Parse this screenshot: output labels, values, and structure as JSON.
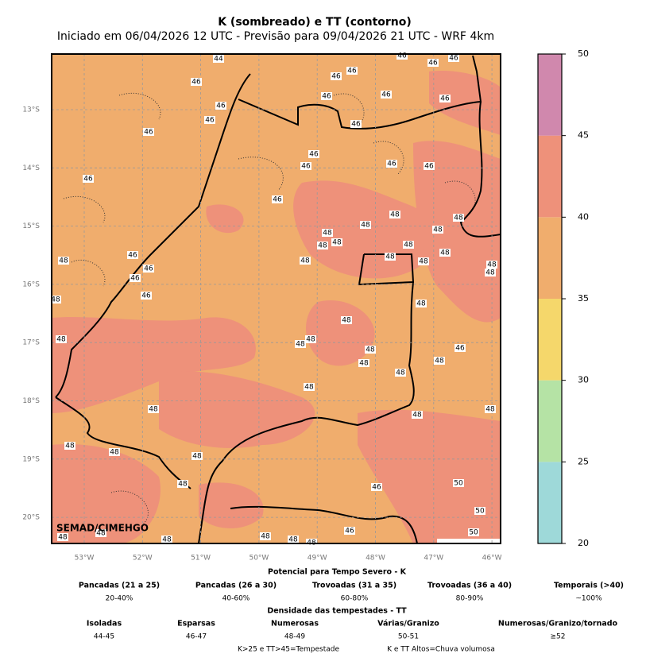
{
  "title": "K (sombreado) e TT (contorno)",
  "subtitle": "Iniciado em 06/04/2026 12 UTC - Previsão para 09/04/2026 21 UTC - WRF 4km",
  "map": {
    "lat_labels": [
      "13°S",
      "14°S",
      "15°S",
      "16°S",
      "17°S",
      "18°S",
      "19°S",
      "20°S"
    ],
    "lon_labels": [
      "53°W",
      "52°W",
      "51°W",
      "50°W",
      "49°W",
      "48°W",
      "47°W",
      "46°W"
    ],
    "credit": "SEMAD/CIMEHGO",
    "grid": true,
    "contour_labels": [
      44,
      46,
      46,
      46,
      46,
      46,
      46,
      46,
      46,
      46,
      46,
      46,
      46,
      46,
      46,
      46,
      46,
      46,
      46,
      46,
      48,
      48,
      48,
      48,
      48,
      48,
      48,
      48,
      46,
      48,
      48,
      48,
      48,
      48,
      46,
      48,
      48,
      46,
      48,
      46,
      48,
      48,
      48,
      48,
      48,
      48,
      46,
      48,
      48,
      48,
      48,
      48,
      48,
      48,
      48,
      48,
      48,
      48,
      46,
      50,
      50,
      46,
      50,
      48,
      48,
      48,
      48,
      48,
      48
    ]
  },
  "colorbar": {
    "levels": [
      20,
      25,
      30,
      35,
      40,
      45,
      50
    ],
    "colors": [
      "#9ed9d9",
      "#b5e3a5",
      "#f5d76b",
      "#f0ad6d",
      "#ee917a",
      "#d088ad"
    ]
  },
  "legend": {
    "k_title": "Potencial para Tempo Severo - K",
    "k_classes": [
      {
        "name": "Pancadas (21 a 25)",
        "range": "20-40%"
      },
      {
        "name": "Pancadas (26 a 30)",
        "range": "40-60%"
      },
      {
        "name": "Trovoadas (31 a 35)",
        "range": "60-80%"
      },
      {
        "name": "Trovoadas (36 a 40)",
        "range": "80-90%"
      },
      {
        "name": "Temporais (>40)",
        "range": "~100%"
      }
    ],
    "tt_title": "Densidade das tempestades - TT",
    "tt_classes": [
      {
        "name": "Isoladas",
        "range": "44-45"
      },
      {
        "name": "Esparsas",
        "range": "46-47"
      },
      {
        "name": "Numerosas",
        "range": "48-49"
      },
      {
        "name": "Várias/Granizo",
        "range": "50-51"
      },
      {
        "name": "Numerosas/Granizo/tornado",
        "range": "≥52"
      }
    ],
    "notes": [
      "K>25 e TT>45=Tempestade",
      "K e TT Altos=Chuva volumosa"
    ]
  }
}
